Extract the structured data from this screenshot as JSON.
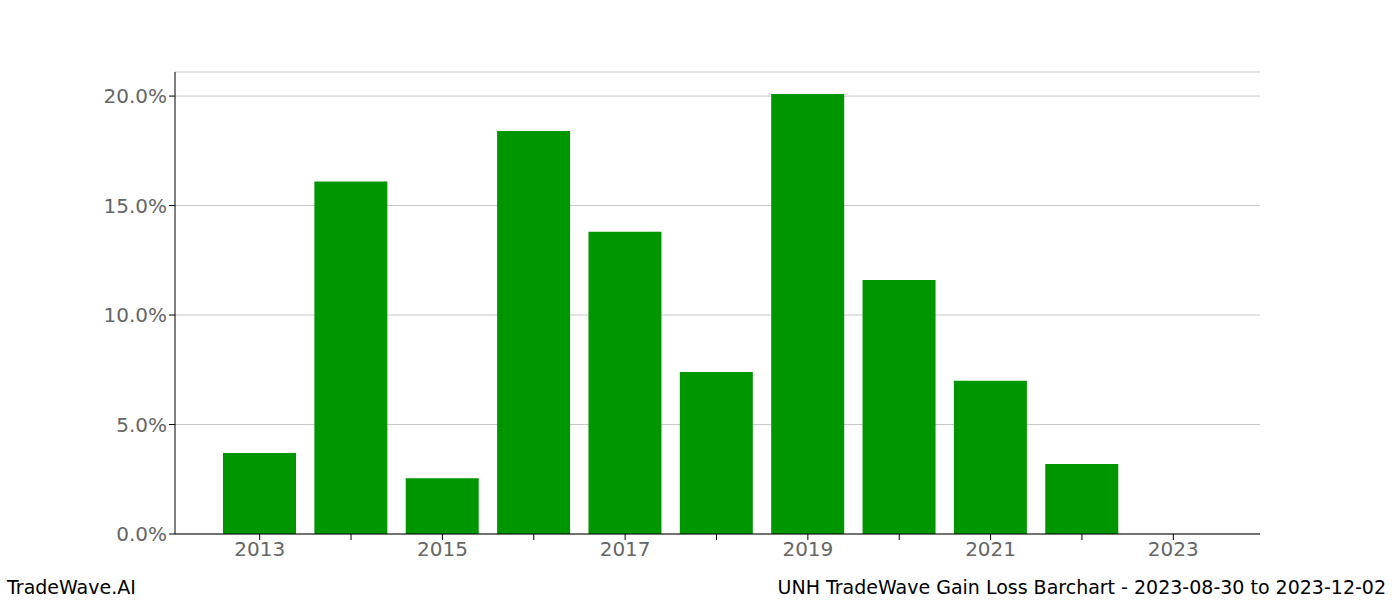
{
  "chart_data": {
    "type": "bar",
    "title": "UNH TradeWave Gain Loss Barchart - 2023-08-30 to 2023-12-02",
    "annotations": [
      "TradeWave.AI"
    ],
    "categories": [
      "2013",
      null,
      "2015",
      null,
      "2017",
      null,
      "2019",
      null,
      "2021",
      null,
      "2023"
    ],
    "values": [
      3.7,
      16.1,
      2.55,
      18.4,
      13.8,
      7.4,
      20.1,
      11.6,
      7.0,
      3.2,
      null
    ],
    "color": "#009600",
    "ylim": [
      0,
      21.1
    ],
    "yticks": [
      {
        "value": 0,
        "label": "0.0%"
      },
      {
        "value": 5,
        "label": "5.0%"
      },
      {
        "value": 10,
        "label": "10.0%"
      },
      {
        "value": 15,
        "label": "15.0%"
      },
      {
        "value": 20,
        "label": "20.0%"
      }
    ],
    "grid": true
  }
}
